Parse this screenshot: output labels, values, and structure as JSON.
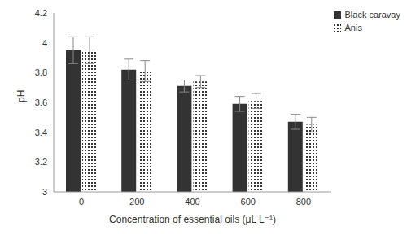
{
  "chart_data": {
    "type": "bar",
    "categories": [
      "0",
      "200",
      "400",
      "600",
      "800"
    ],
    "series": [
      {
        "name": "Black caravay",
        "color": "#333333",
        "values": [
          3.95,
          3.82,
          3.71,
          3.59,
          3.47
        ],
        "errors": [
          0.09,
          0.07,
          0.04,
          0.05,
          0.05
        ]
      },
      {
        "name": "Anis",
        "color": "#333333",
        "values": [
          3.95,
          3.81,
          3.74,
          3.61,
          3.45
        ],
        "errors": [
          0.09,
          0.07,
          0.04,
          0.05,
          0.05
        ]
      }
    ],
    "xlabel": "Concentration of essential oils (μL L⁻¹)",
    "ylabel": "pH",
    "ylim": [
      3,
      4.2
    ],
    "yticks": [
      3,
      3.2,
      3.4,
      3.6,
      3.8,
      4,
      4.2
    ],
    "grid": false,
    "legend": "upper right"
  }
}
